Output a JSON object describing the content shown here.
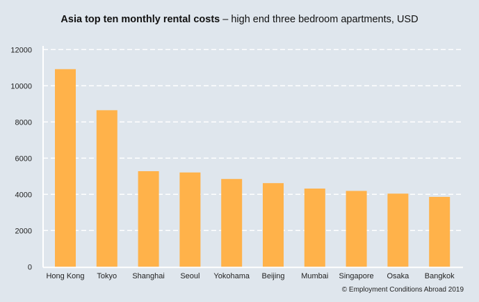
{
  "chart_data": {
    "type": "bar",
    "title": "Asia top ten monthly rental costs",
    "subtitle": "– high end three bedroom apartments, USD",
    "categories": [
      "Hong Kong",
      "Tokyo",
      "Shanghai",
      "Seoul",
      "Yokohama",
      "Beijing",
      "Mumbai",
      "Singapore",
      "Osaka",
      "Bangkok"
    ],
    "values": [
      10920,
      8650,
      5280,
      5210,
      4850,
      4620,
      4320,
      4190,
      4040,
      3860
    ],
    "xlabel": "",
    "ylabel": "",
    "ylim": [
      0,
      12000
    ],
    "yticks": [
      "0",
      "2000",
      "4000",
      "6000",
      "8000",
      "10000",
      "12000"
    ],
    "grid": "horizontal dashed",
    "bar_color": "#ffb24a",
    "background_color": "#dfe6ed"
  },
  "footer": "© Employment Conditions Abroad 2019"
}
